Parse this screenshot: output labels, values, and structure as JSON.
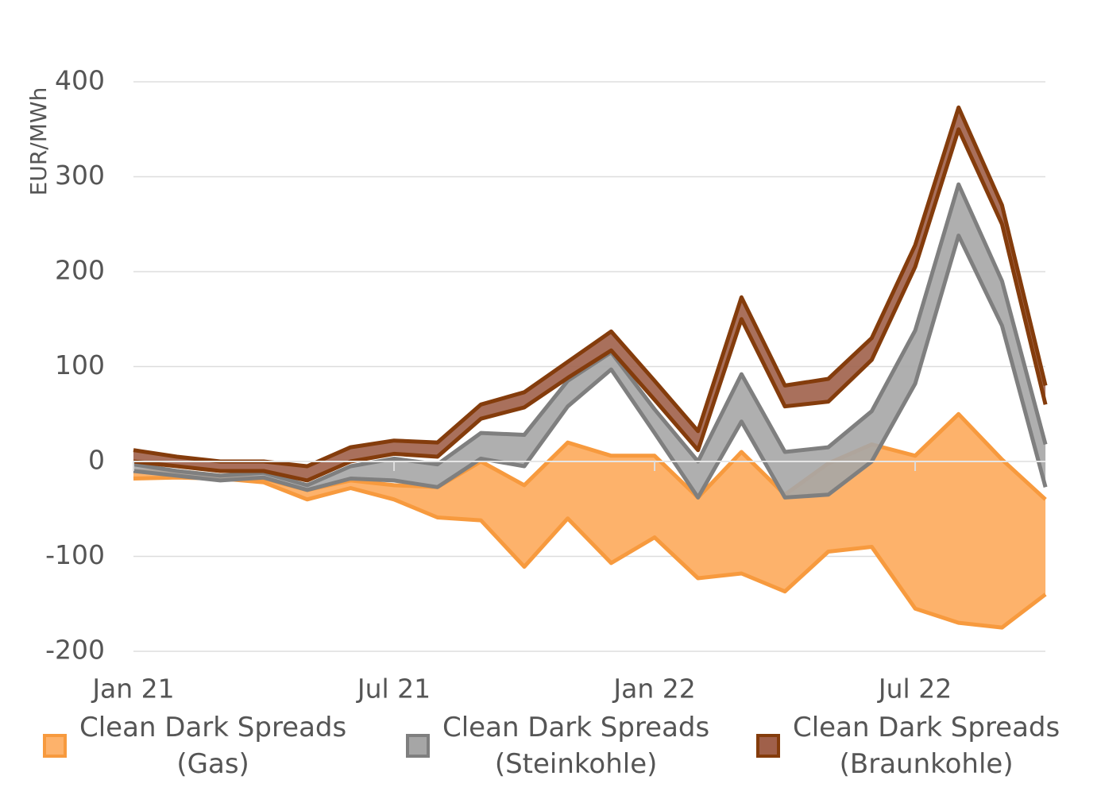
{
  "chart_data": {
    "type": "area",
    "ylabel": "EUR/MWh",
    "ylim": [
      -200,
      400
    ],
    "yticks": [
      -200,
      -100,
      0,
      100,
      200,
      300,
      400
    ],
    "x_tick_labels": [
      "Jan 21",
      "Jul 21",
      "Jan 22",
      "Jul 22"
    ],
    "x": [
      "Jan 21",
      "Feb 21",
      "Mar 21",
      "Apr 21",
      "May 21",
      "Jun 21",
      "Jul 21",
      "Aug 21",
      "Sep 21",
      "Oct 21",
      "Nov 21",
      "Dec 21",
      "Jan 22",
      "Feb 22",
      "Mar 22",
      "Apr 22",
      "May 22",
      "Jun 22",
      "Jul 22",
      "Aug 22",
      "Sep 22",
      "Oct 22"
    ],
    "grid": true,
    "legend_position": "bottom",
    "series": [
      {
        "name_lines": [
          "Clean Dark Spreads",
          "(Gas)"
        ],
        "fill": "#FDB26B",
        "stroke": "#F79A3E",
        "upper": [
          -10,
          -10,
          -15,
          -18,
          -30,
          -20,
          -25,
          -27,
          0,
          -25,
          20,
          6,
          6,
          -38,
          10,
          -35,
          -2,
          18,
          6,
          50,
          2,
          -40
        ],
        "lower": [
          -18,
          -17,
          -18,
          -22,
          -40,
          -28,
          -40,
          -59,
          -62,
          -111,
          -60,
          -107,
          -80,
          -123,
          -118,
          -137,
          -95,
          -90,
          -155,
          -170,
          -175,
          -140
        ]
      },
      {
        "name_lines": [
          "Clean Dark Spreads",
          "(Steinkohle)"
        ],
        "fill": "#A6A6A6",
        "stroke": "#7F7F7F",
        "upper": [
          -3,
          -10,
          -15,
          -12,
          -25,
          -5,
          3,
          -3,
          30,
          28,
          85,
          115,
          55,
          0,
          92,
          10,
          15,
          53,
          138,
          292,
          190,
          18
        ],
        "lower": [
          -10,
          -15,
          -20,
          -17,
          -30,
          -18,
          -20,
          -27,
          3,
          -5,
          58,
          97,
          30,
          -38,
          42,
          -38,
          -35,
          0,
          82,
          238,
          143,
          -27
        ]
      },
      {
        "name_lines": [
          "Clean Dark Spreads",
          "(Braunkohle)"
        ],
        "fill": "#A0604A",
        "stroke": "#843C0C",
        "upper": [
          12,
          5,
          0,
          0,
          -5,
          15,
          22,
          20,
          60,
          73,
          105,
          137,
          85,
          32,
          173,
          80,
          87,
          130,
          228,
          373,
          270,
          80
        ],
        "lower": [
          0,
          -5,
          -10,
          -10,
          -20,
          0,
          8,
          5,
          45,
          57,
          88,
          117,
          65,
          12,
          150,
          58,
          63,
          107,
          205,
          350,
          250,
          60
        ]
      }
    ]
  }
}
